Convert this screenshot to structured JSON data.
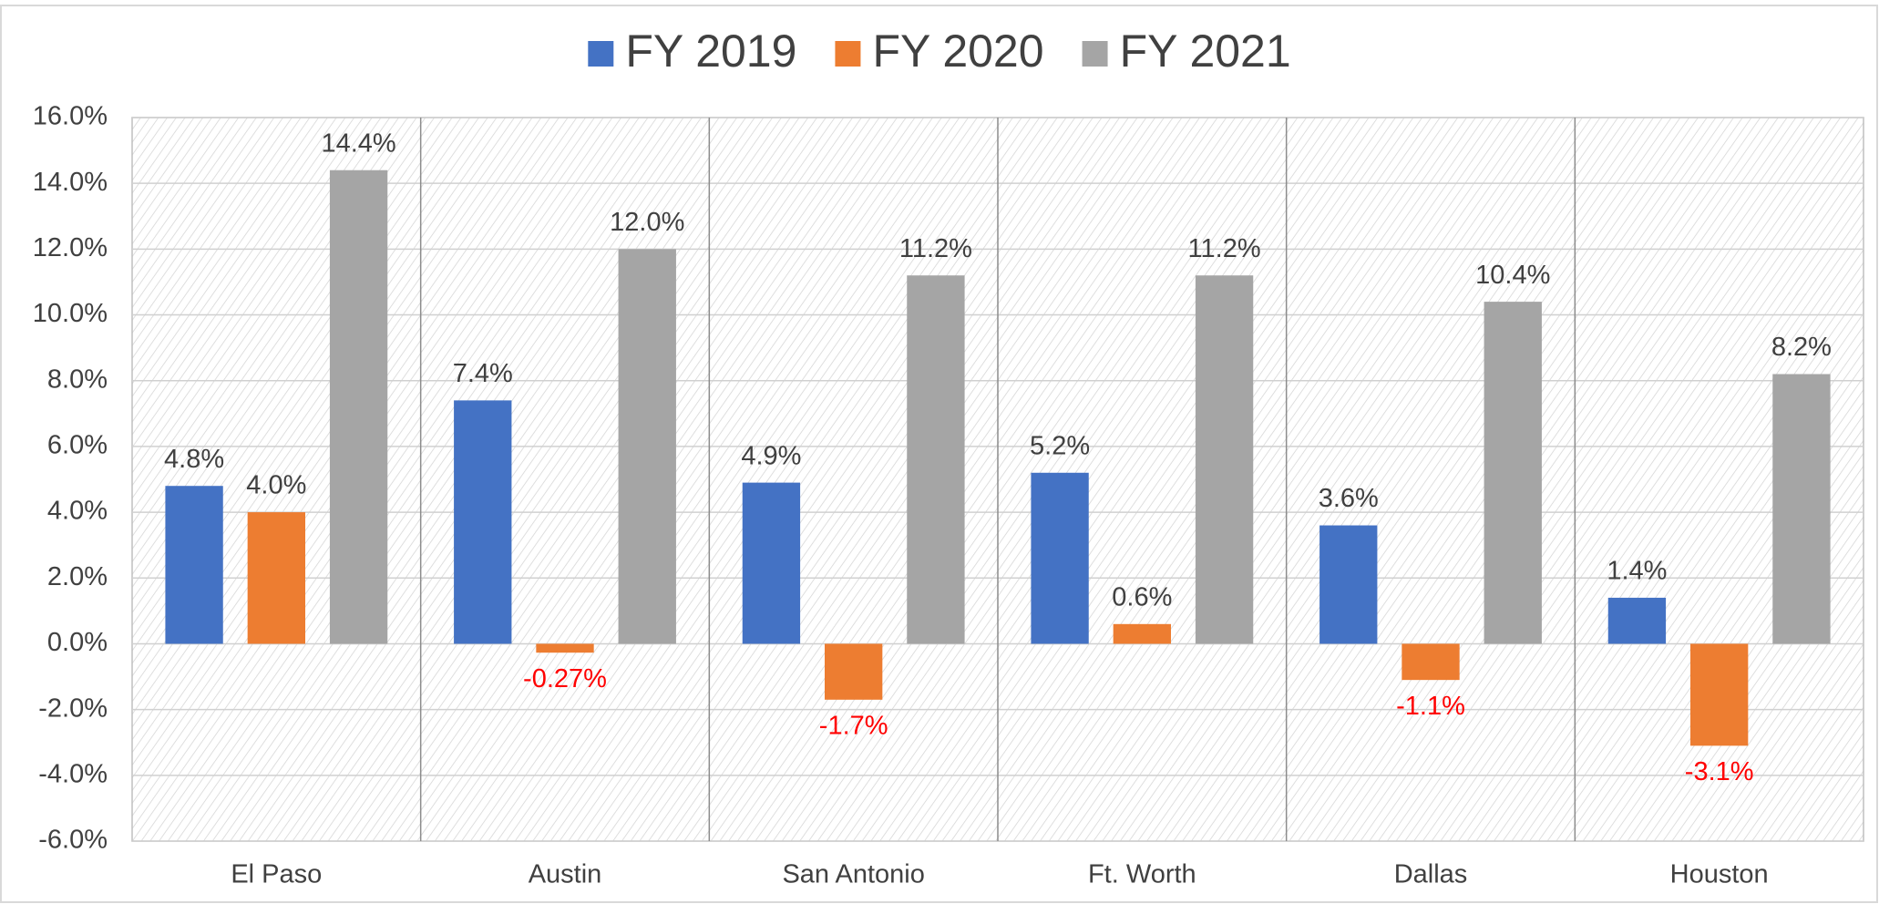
{
  "chart_data": {
    "type": "bar",
    "categories": [
      "El Paso",
      "Austin",
      "San Antonio",
      "Ft. Worth",
      "Dallas",
      "Houston"
    ],
    "series": [
      {
        "name": "FY 2019",
        "color": "#4472c4",
        "values": [
          4.8,
          7.4,
          4.9,
          5.2,
          3.6,
          1.4
        ],
        "value_labels": [
          "4.8%",
          "7.4%",
          "4.9%",
          "5.2%",
          "3.6%",
          "1.4%"
        ]
      },
      {
        "name": "FY 2020",
        "color": "#ed7d31",
        "values": [
          4.0,
          -0.27,
          -1.7,
          0.6,
          -1.1,
          -3.1
        ],
        "value_labels": [
          "4.0%",
          "-0.27%",
          "-1.7%",
          "0.6%",
          "-1.1%",
          "-3.1%"
        ]
      },
      {
        "name": "FY 2021",
        "color": "#a5a5a5",
        "values": [
          14.4,
          12.0,
          11.2,
          11.2,
          10.4,
          8.2
        ],
        "value_labels": [
          "14.4%",
          "12.0%",
          "11.2%",
          "11.2%",
          "10.4%",
          "8.2%"
        ]
      }
    ],
    "negative_label_color": "#ff0000",
    "ylim": [
      -6,
      16
    ],
    "yticks": [
      {
        "value": -6,
        "label": "-6.0%"
      },
      {
        "value": -4,
        "label": "-4.0%"
      },
      {
        "value": -2,
        "label": "-2.0%"
      },
      {
        "value": 0,
        "label": "0.0%"
      },
      {
        "value": 2,
        "label": "2.0%"
      },
      {
        "value": 4,
        "label": "4.0%"
      },
      {
        "value": 6,
        "label": "6.0%"
      },
      {
        "value": 8,
        "label": "8.0%"
      },
      {
        "value": 10,
        "label": "10.0%"
      },
      {
        "value": 12,
        "label": "12.0%"
      },
      {
        "value": 14,
        "label": "14.0%"
      },
      {
        "value": 16,
        "label": "16.0%"
      }
    ],
    "grid": true,
    "legend": "top"
  }
}
